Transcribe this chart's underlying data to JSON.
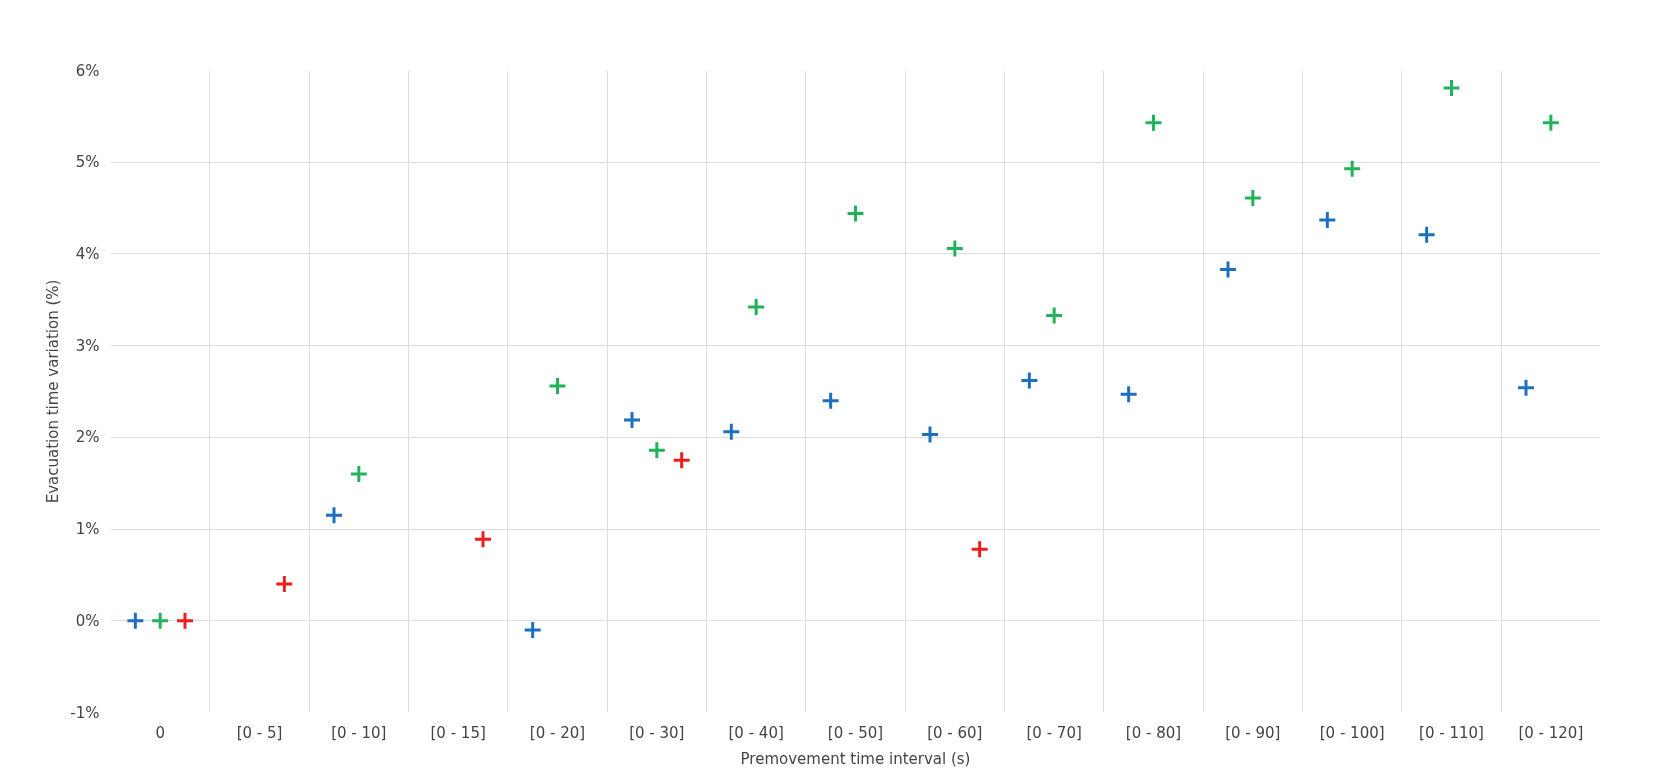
{
  "chart_data": {
    "type": "scatter",
    "xlabel": "Premovement time interval (s)",
    "ylabel": "Evacuation time variation (%)",
    "categories": [
      "0",
      "[0 - 5]",
      "[0 - 10]",
      "[0 - 15]",
      "[0 - 20]",
      "[0 - 30]",
      "[0 - 40]",
      "[0 - 50]",
      "[0 - 60]",
      "[0 - 70]",
      "[0 - 80]",
      "[0 - 90]",
      "[0 - 100]",
      "[0 - 110]",
      "[0 - 120]"
    ],
    "series": [
      {
        "color": "#1f6fbf",
        "values": [
          0,
          null,
          1.15,
          null,
          -0.1,
          2.19,
          2.06,
          2.4,
          2.03,
          2.62,
          2.47,
          3.83,
          4.37,
          4.21,
          2.54
        ]
      },
      {
        "color": "#22b35a",
        "values": [
          0,
          null,
          1.6,
          null,
          2.56,
          1.86,
          3.42,
          4.44,
          4.06,
          3.33,
          5.43,
          4.61,
          4.93,
          5.81,
          5.43
        ]
      },
      {
        "color": "#ee1c1c",
        "values": [
          0,
          0.4,
          null,
          0.89,
          null,
          1.75,
          null,
          null,
          0.78,
          null,
          null,
          null,
          null,
          null,
          null
        ]
      }
    ],
    "ylim": [
      -1,
      6
    ],
    "yticks": [
      {
        "value": -1,
        "label": "-1%"
      },
      {
        "value": 0,
        "label": "0%"
      },
      {
        "value": 1,
        "label": "1%"
      },
      {
        "value": 2,
        "label": "2%"
      },
      {
        "value": 3,
        "label": "3%"
      },
      {
        "value": 4,
        "label": "4%"
      },
      {
        "value": 5,
        "label": "5%"
      },
      {
        "value": 6,
        "label": "6%"
      }
    ],
    "grid": true,
    "marker": "cross"
  }
}
